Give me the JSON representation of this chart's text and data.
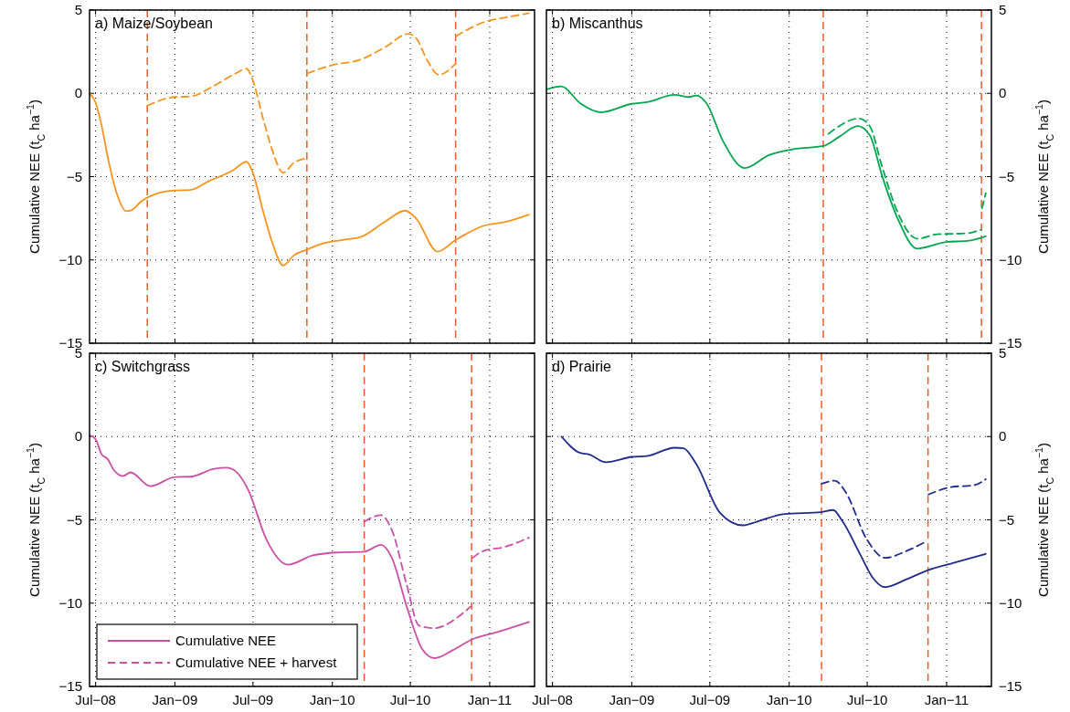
{
  "chart_data": [
    {
      "type": "line",
      "title": "a) Maize/Soybean",
      "ylabel": "Cumulative NEE (t$_{C}$ ha$^{−1}$)",
      "xlim": [
        "2008-06-17",
        "2011-04-15"
      ],
      "ylim": [
        -15,
        5
      ],
      "xticks": [
        {
          "value": "2008-07-01",
          "label": null
        },
        {
          "value": "2009-01-01",
          "label": null
        },
        {
          "value": "2009-07-01",
          "label": null
        },
        {
          "value": "2010-01-01",
          "label": null
        },
        {
          "value": "2010-07-01",
          "label": null
        },
        {
          "value": "2011-01-01",
          "label": null
        }
      ],
      "yticks": [
        {
          "value": -15,
          "label": "−15"
        },
        {
          "value": -10,
          "label": "−10"
        },
        {
          "value": -5,
          "label": "−5"
        },
        {
          "value": 0,
          "label": "0"
        },
        {
          "value": 5,
          "label": "5"
        }
      ],
      "grid": true,
      "tick_labels": "y",
      "series": [
        {
          "color": "#f7941d",
          "line_style": "solid",
          "x": [
            "2008-06-17",
            "2008-07-01",
            "2008-07-15",
            "2008-07-29",
            "2008-08-19",
            "2008-09-10",
            "2008-09-20",
            "2008-10-15",
            "2008-11-20",
            "2009-01-01",
            "2009-02-05",
            "2009-03-20",
            "2009-05-15",
            "2009-06-16",
            "2009-06-30",
            "2009-07-25",
            "2009-08-15",
            "2009-09-09",
            "2009-10-04",
            "2009-11-02",
            "2009-12-14",
            "2010-01-25",
            "2010-03-09",
            "2010-05-04",
            "2010-06-19",
            "2010-07-14",
            "2010-09-02",
            "2010-10-14",
            "2010-12-17",
            "2011-02-11",
            "2011-04-02"
          ],
          "values": [
            0,
            -0.56,
            -1.94,
            -3.8,
            -6.0,
            -7.07,
            -7.04,
            -6.48,
            -6.02,
            -5.83,
            -5.8,
            -5.28,
            -4.63,
            -4.11,
            -4.72,
            -7.13,
            -8.98,
            -10.33,
            -9.72,
            -9.39,
            -8.98,
            -8.8,
            -8.61,
            -7.69,
            -7.04,
            -7.5,
            -9.5,
            -8.8,
            -7.96,
            -7.69,
            -7.28
          ]
        },
        {
          "color": "#f7941d",
          "line_style": "dashed",
          "x": [
            "2008-10-29",
            "2009-01-01",
            "2009-02-05",
            "2009-04-02",
            "2009-05-22",
            "2009-06-16",
            "2009-06-30",
            "2009-07-25",
            "2009-08-15",
            "2009-09-09",
            "2009-10-04",
            "2009-11-02",
            "2009-11-03",
            "2009-11-04",
            "2009-12-28",
            "2010-03-09",
            "2010-05-04",
            "2010-06-26",
            "2010-07-14",
            "2010-08-10",
            "2010-09-05",
            "2010-10-13",
            "2010-10-14",
            "2010-10-15",
            "2010-12-17",
            "2011-02-11",
            "2011-04-02"
          ],
          "values": [
            -0.74,
            -0.22,
            -0.19,
            0.46,
            1.2,
            1.48,
            0.83,
            -1.57,
            -3.43,
            -4.76,
            -4.17,
            -3.89,
            null,
            1.2,
            1.67,
            2.04,
            2.78,
            3.57,
            3.33,
            1.94,
            1.11,
            1.76,
            null,
            3.43,
            4.26,
            4.57,
            4.81
          ]
        }
      ],
      "ref_lines": [
        {
          "axis": "x",
          "value": "2008-10-29",
          "color": "#f05a28",
          "line_style": "dashed"
        },
        {
          "axis": "x",
          "value": "2009-11-03",
          "color": "#f05a28",
          "line_style": "dashed"
        },
        {
          "axis": "x",
          "value": "2010-10-14",
          "color": "#f05a28",
          "line_style": "dashed"
        }
      ]
    },
    {
      "type": "line",
      "title": "b) Miscanthus",
      "ylabel": "Cumulative NEE (t$_{C}$ ha$^{−1}$)",
      "xlim": [
        "2008-06-17",
        "2011-04-15"
      ],
      "ylim": [
        -15,
        5
      ],
      "xticks": [
        {
          "value": "2008-07-01",
          "label": null
        },
        {
          "value": "2009-01-01",
          "label": null
        },
        {
          "value": "2009-07-01",
          "label": null
        },
        {
          "value": "2010-01-01",
          "label": null
        },
        {
          "value": "2010-07-01",
          "label": null
        },
        {
          "value": "2011-01-01",
          "label": null
        }
      ],
      "yticks": [
        {
          "value": -15,
          "label": "−15"
        },
        {
          "value": -10,
          "label": "−10"
        },
        {
          "value": -5,
          "label": "−5"
        },
        {
          "value": 0,
          "label": "0"
        },
        {
          "value": 5,
          "label": "5"
        }
      ],
      "grid": true,
      "tick_labels": "y",
      "series": [
        {
          "color": "#00a650",
          "line_style": "solid",
          "x": [
            "2008-06-18",
            "2008-07-22",
            "2008-09-03",
            "2008-10-22",
            "2009-01-01",
            "2009-02-05",
            "2009-04-10",
            "2009-05-15",
            "2009-05-30",
            "2009-06-23",
            "2009-08-01",
            "2009-09-20",
            "2009-11-15",
            "2010-01-11",
            "2010-03-21",
            "2010-04-27",
            "2010-06-09",
            "2010-07-07",
            "2010-08-04",
            "2010-09-09",
            "2010-10-25",
            "2010-12-31",
            "2011-02-18",
            "2011-04-02"
          ],
          "values": [
            0.24,
            0.42,
            -0.59,
            -1.14,
            -0.63,
            -0.53,
            -0.09,
            -0.22,
            -0.13,
            -0.59,
            -2.89,
            -4.49,
            -3.71,
            -3.35,
            -3.16,
            -2.61,
            -1.97,
            -2.52,
            -4.91,
            -7.48,
            -9.32,
            -8.92,
            -8.86,
            -8.58
          ]
        },
        {
          "color": "#00a650",
          "line_style": "dashed",
          "x": [
            "2010-04-02",
            "2010-06-12",
            "2010-07-07",
            "2010-08-04",
            "2010-09-09",
            "2010-10-25",
            "2010-12-10",
            "2011-02-18",
            "2011-03-22",
            "2011-03-23",
            "2011-03-24",
            "2011-04-02"
          ],
          "values": [
            -2.43,
            -1.51,
            -1.97,
            -4.36,
            -7.11,
            -8.73,
            -8.46,
            -8.4,
            -8.18,
            null,
            -6.9,
            -6.0
          ]
        }
      ],
      "ref_lines": [
        {
          "axis": "x",
          "value": "2010-03-21",
          "color": "#f05a28",
          "line_style": "dashed"
        },
        {
          "axis": "x",
          "value": "2011-03-23",
          "color": "#f05a28",
          "line_style": "dashed"
        }
      ]
    },
    {
      "type": "line",
      "title": "c) Switchgrass",
      "ylabel": "Cumulative NEE (t$_{C}$ ha$^{−1}$)",
      "xlim": [
        "2008-06-17",
        "2011-04-15"
      ],
      "ylim": [
        -15,
        5
      ],
      "xticks": [
        {
          "value": "2008-07-01",
          "label": "Jul−08"
        },
        {
          "value": "2009-01-01",
          "label": "Jan−09"
        },
        {
          "value": "2009-07-01",
          "label": "Jul−09"
        },
        {
          "value": "2010-01-01",
          "label": "Jan−10"
        },
        {
          "value": "2010-07-01",
          "label": "Jul−10"
        },
        {
          "value": "2011-01-01",
          "label": "Jan−11"
        }
      ],
      "yticks": [
        {
          "value": -15,
          "label": "−15"
        },
        {
          "value": -10,
          "label": "−10"
        },
        {
          "value": -5,
          "label": "−5"
        },
        {
          "value": 0,
          "label": "0"
        },
        {
          "value": 5,
          "label": "5"
        }
      ],
      "grid": true,
      "legend": "bottom left",
      "series": [
        {
          "name": "Cumulative NEE",
          "color": "#cc4fa6",
          "line_style": "solid",
          "x": [
            "2008-06-17",
            "2008-07-01",
            "2008-07-15",
            "2008-07-29",
            "2008-08-12",
            "2008-09-03",
            "2008-09-20",
            "2008-11-05",
            "2009-01-01",
            "2009-02-05",
            "2009-04-02",
            "2009-05-01",
            "2009-05-22",
            "2009-06-20",
            "2009-08-01",
            "2009-09-20",
            "2009-11-15",
            "2010-01-11",
            "2010-03-16",
            "2010-04-24",
            "2010-05-19",
            "2010-06-23",
            "2010-07-28",
            "2010-08-26",
            "2010-10-07",
            "2010-11-20",
            "2011-01-21",
            "2011-04-02"
          ],
          "values": [
            0.07,
            -0.15,
            -1.07,
            -1.35,
            -2.0,
            -2.37,
            -2.15,
            -2.98,
            -2.43,
            -2.41,
            -1.94,
            -1.87,
            -2.09,
            -3.2,
            -6.17,
            -7.69,
            -7.15,
            -6.96,
            -6.91,
            -6.5,
            -7.28,
            -10.24,
            -12.74,
            -13.3,
            -12.83,
            -12.19,
            -11.72,
            -11.13
          ]
        },
        {
          "name": "Cumulative NEE + harvest",
          "color": "#cc4fa6",
          "line_style": "dashed",
          "x": [
            "2010-03-16",
            "2010-04-24",
            "2010-05-19",
            "2010-06-23",
            "2010-07-21",
            "2010-08-26",
            "2010-10-21",
            "2010-11-18",
            "2010-11-20",
            "2010-11-22",
            "2010-12-17",
            "2011-02-04",
            "2011-04-02"
          ],
          "values": [
            -5.11,
            -4.72,
            -5.61,
            -8.94,
            -11.35,
            -11.5,
            -10.8,
            -10.2,
            null,
            -7.28,
            -6.87,
            -6.63,
            -6.07
          ]
        }
      ],
      "ref_lines": [
        {
          "axis": "x",
          "value": "2010-03-16",
          "color": "#f05a28",
          "line_style": "dashed"
        },
        {
          "axis": "x",
          "value": "2010-11-20",
          "color": "#f05a28",
          "line_style": "dashed"
        }
      ]
    },
    {
      "type": "line",
      "title": "d) Prairie",
      "ylabel": "Cumulative NEE (t$_{C}$ ha$^{−1}$)",
      "xlim": [
        "2008-06-17",
        "2011-04-15"
      ],
      "ylim": [
        -15,
        5
      ],
      "xticks": [
        {
          "value": "2008-07-01",
          "label": "Jul−08"
        },
        {
          "value": "2009-01-01",
          "label": "Jan−09"
        },
        {
          "value": "2009-07-01",
          "label": "Jul−09"
        },
        {
          "value": "2010-01-01",
          "label": "Jan−10"
        },
        {
          "value": "2010-07-01",
          "label": "Jul−10"
        },
        {
          "value": "2011-01-01",
          "label": "Jan−11"
        }
      ],
      "yticks": [
        {
          "value": -15,
          "label": "−15"
        },
        {
          "value": -10,
          "label": "−10"
        },
        {
          "value": -5,
          "label": "−5"
        },
        {
          "value": 0,
          "label": "0"
        },
        {
          "value": 5,
          "label": "5"
        }
      ],
      "grid": true,
      "series": [
        {
          "color": "#1f2a8c",
          "line_style": "solid",
          "x": [
            "2008-07-22",
            "2008-09-03",
            "2008-09-24",
            "2008-11-02",
            "2009-01-01",
            "2009-02-05",
            "2009-04-10",
            "2009-05-01",
            "2009-05-30",
            "2009-07-25",
            "2009-09-16",
            "2009-10-18",
            "2009-12-21",
            "2010-03-16",
            "2010-04-13",
            "2010-05-04",
            "2010-06-15",
            "2010-07-14",
            "2010-08-11",
            "2010-09-30",
            "2010-11-19",
            "2011-01-21",
            "2011-04-02"
          ],
          "values": [
            0,
            -0.98,
            -1.07,
            -1.54,
            -1.22,
            -1.17,
            -0.67,
            -0.7,
            -1.63,
            -4.59,
            -5.33,
            -5.11,
            -4.65,
            -4.54,
            -4.41,
            -5.06,
            -7.09,
            -8.48,
            -9.04,
            -8.57,
            -8.02,
            -7.56,
            -7.04
          ]
        },
        {
          "color": "#1f2a8c",
          "line_style": "dashed",
          "x": [
            "2010-03-17",
            "2010-04-17",
            "2010-05-11",
            "2010-06-30",
            "2010-08-11",
            "2010-09-30",
            "2010-11-17",
            "2010-11-19",
            "2010-11-20",
            "2011-01-14",
            "2011-03-04",
            "2011-04-02"
          ],
          "values": [
            -2.83,
            -2.65,
            -3.3,
            -6.17,
            -7.28,
            -6.87,
            -6.26,
            null,
            -3.48,
            -3.02,
            -2.93,
            -2.56
          ]
        }
      ],
      "ref_lines": [
        {
          "axis": "x",
          "value": "2010-03-17",
          "color": "#f05a28",
          "line_style": "dashed"
        },
        {
          "axis": "x",
          "value": "2010-11-19",
          "color": "#f05a28",
          "line_style": "dashed"
        }
      ]
    }
  ]
}
